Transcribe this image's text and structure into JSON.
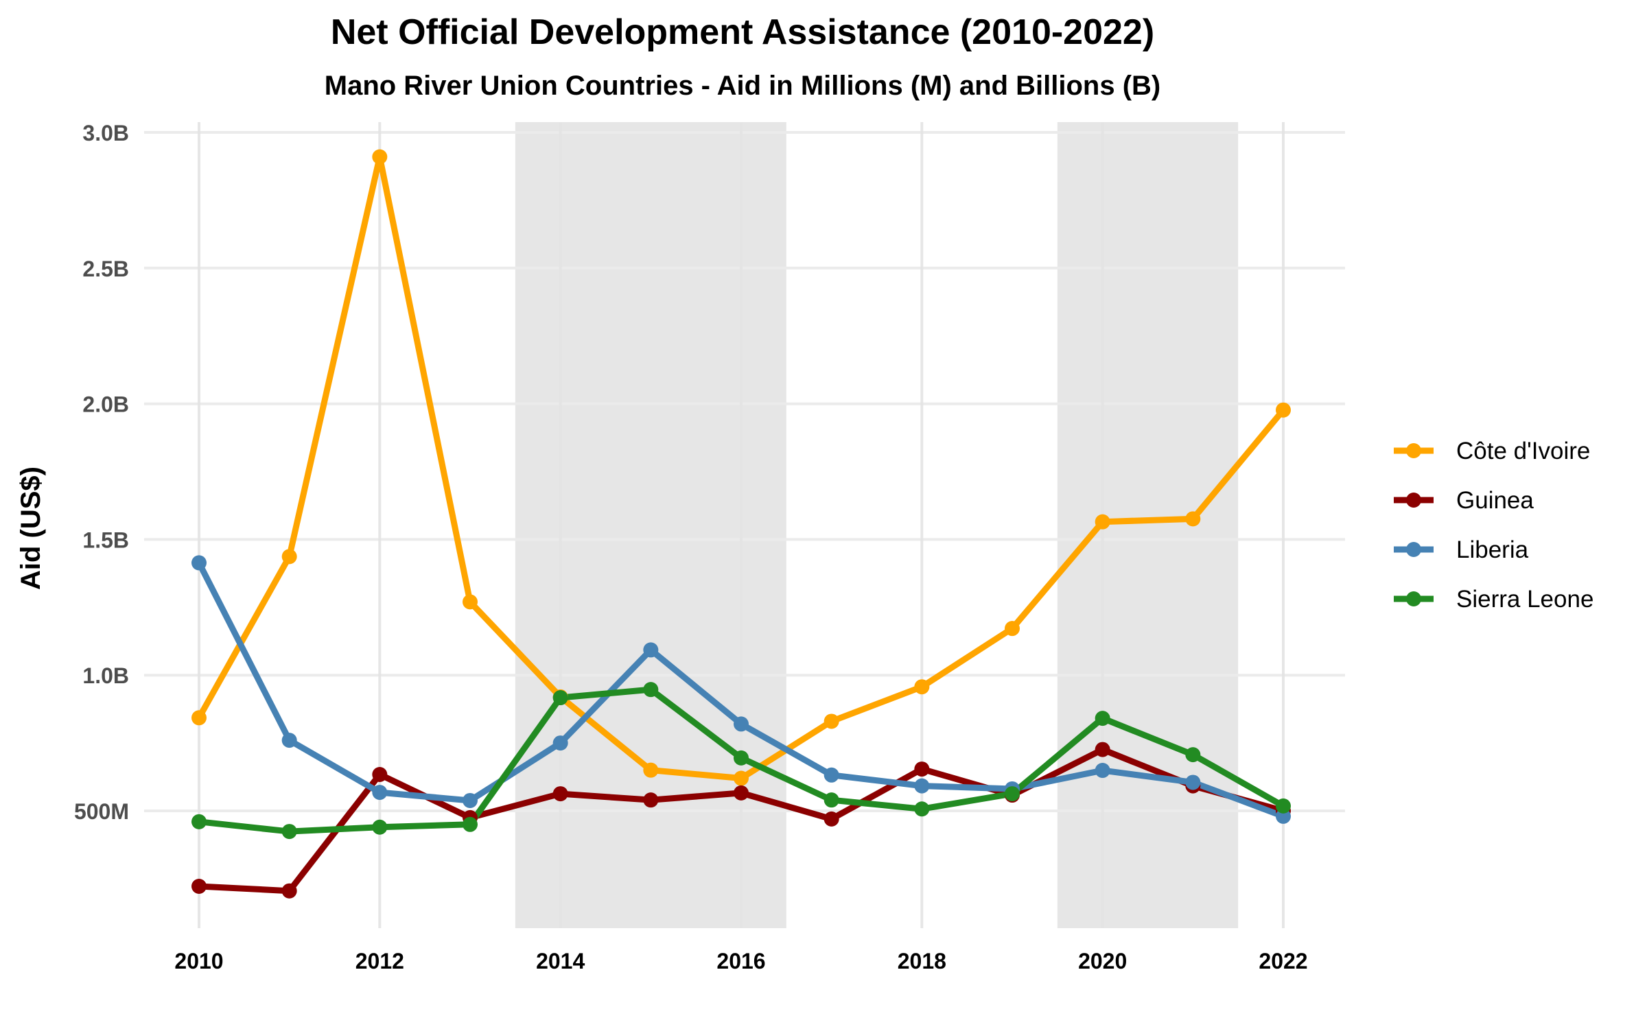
{
  "chart_data": {
    "type": "line",
    "title": "Net Official Development Assistance (2010-2022)",
    "subtitle": "Mano River Union Countries - Aid in Millions (M) and Billions (B)",
    "xlabel": "",
    "ylabel": "Aid (US$)",
    "x": [
      2010,
      2011,
      2012,
      2013,
      2014,
      2015,
      2016,
      2017,
      2018,
      2019,
      2020,
      2021,
      2022
    ],
    "xlim": [
      2009.75,
      2022.6
    ],
    "x_ticks": [
      2010,
      2012,
      2014,
      2016,
      2018,
      2020,
      2022
    ],
    "x_tick_labels": [
      "2010",
      "2012",
      "2014",
      "2016",
      "2018",
      "2020",
      "2022"
    ],
    "ylim": [
      0.08,
      3.04
    ],
    "y_ticks": [
      0.5,
      1.0,
      1.5,
      2.0,
      2.5,
      3.0
    ],
    "y_tick_labels": [
      "500M",
      "1.0B",
      "1.5B",
      "2.0B",
      "2.5B",
      "3.0B"
    ],
    "y_unit": "billions US$",
    "grid": true,
    "legend_position": "right",
    "shaded_periods": [
      {
        "start": 2013.5,
        "end": 2016.5
      },
      {
        "start": 2019.5,
        "end": 2021.5
      }
    ],
    "series": [
      {
        "name": "Côte d'Ivoire",
        "color": "#FFA500",
        "values": [
          0.843,
          1.437,
          2.91,
          1.27,
          0.92,
          0.65,
          0.62,
          0.83,
          0.957,
          1.172,
          1.565,
          1.576,
          1.977
        ]
      },
      {
        "name": "Guinea",
        "color": "#8B0000",
        "values": [
          0.222,
          0.205,
          0.634,
          0.475,
          0.563,
          0.54,
          0.566,
          0.47,
          0.654,
          0.558,
          0.726,
          0.592,
          0.5
        ]
      },
      {
        "name": "Liberia",
        "color": "#4682B4",
        "values": [
          1.414,
          0.76,
          0.568,
          0.538,
          0.75,
          1.093,
          0.82,
          0.632,
          0.592,
          0.581,
          0.649,
          0.605,
          0.48
        ]
      },
      {
        "name": "Sierra Leone",
        "color": "#228B22",
        "values": [
          0.46,
          0.424,
          0.44,
          0.45,
          0.917,
          0.947,
          0.695,
          0.54,
          0.507,
          0.563,
          0.841,
          0.707,
          0.518
        ]
      }
    ]
  }
}
